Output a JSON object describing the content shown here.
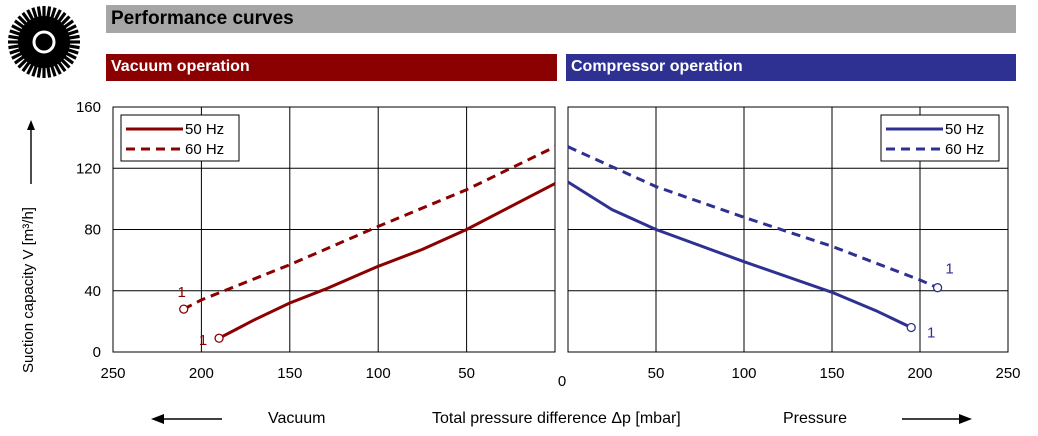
{
  "title": "Performance curves",
  "colors": {
    "title_bar": "#a6a6a6",
    "vacuum": "#8b0000",
    "compressor": "#2e3192",
    "grid": "#000000"
  },
  "chart_data": [
    {
      "panel": "Vacuum operation",
      "type": "line",
      "xlim": [
        250,
        0
      ],
      "ylim": [
        0,
        160
      ],
      "x_ticks": [
        "250",
        "200",
        "150",
        "100",
        "50",
        "0"
      ],
      "y_ticks": [
        "0",
        "40",
        "80",
        "120",
        "160"
      ],
      "ylabel": "Suction capacity V [m³/h]",
      "grid": true,
      "legend_position": "top-left",
      "series": [
        {
          "name": "50 Hz",
          "style": "solid",
          "end_label": "1",
          "points": [
            [
              190,
              9
            ],
            [
              180,
              15
            ],
            [
              170,
              21
            ],
            [
              150,
              32
            ],
            [
              130,
              41
            ],
            [
              100,
              56
            ],
            [
              75,
              67
            ],
            [
              50,
              80
            ],
            [
              30,
              92
            ],
            [
              0,
              110
            ]
          ]
        },
        {
          "name": "60 Hz",
          "style": "dashed",
          "end_label": "1",
          "points": [
            [
              210,
              28
            ],
            [
              200,
              34
            ],
            [
              150,
              57
            ],
            [
              100,
              82
            ],
            [
              50,
              106
            ],
            [
              0,
              134
            ]
          ]
        }
      ]
    },
    {
      "panel": "Compressor operation",
      "type": "line",
      "xlim": [
        0,
        250
      ],
      "ylim": [
        0,
        160
      ],
      "x_ticks": [
        "0",
        "50",
        "100",
        "150",
        "200",
        "250"
      ],
      "grid": true,
      "legend_position": "top-right",
      "series": [
        {
          "name": "50 Hz",
          "style": "solid",
          "end_label": "1",
          "points": [
            [
              0,
              111
            ],
            [
              25,
              93
            ],
            [
              50,
              80
            ],
            [
              100,
              59
            ],
            [
              150,
              39
            ],
            [
              175,
              27
            ],
            [
              195,
              16
            ]
          ]
        },
        {
          "name": "60 Hz",
          "style": "dashed",
          "end_label": "1",
          "points": [
            [
              0,
              134
            ],
            [
              50,
              108
            ],
            [
              100,
              88
            ],
            [
              150,
              69
            ],
            [
              200,
              47
            ],
            [
              210,
              42
            ]
          ]
        }
      ]
    }
  ],
  "footer": {
    "vacuum": "Vacuum",
    "center": "Total pressure difference Δp [mbar]",
    "pressure": "Pressure"
  }
}
